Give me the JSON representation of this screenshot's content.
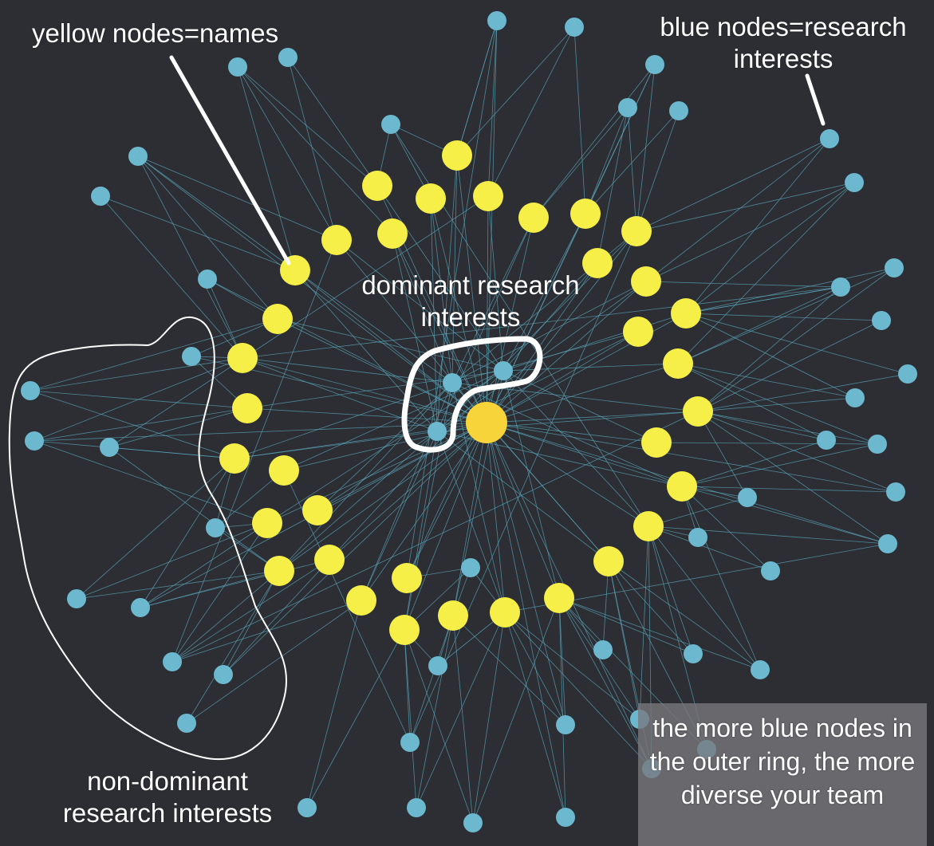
{
  "annotations": {
    "names_legend": "yellow nodes=names",
    "research_legend_line1": "blue nodes=research",
    "research_legend_line2": "interests",
    "dominant_line1": "dominant research",
    "dominant_line2": "interests",
    "nondominant_line1": "non-dominant",
    "nondominant_line2": "research interests",
    "diversity_note": "the more blue nodes in the outer ring, the more diverse your team"
  },
  "colors": {
    "background": "#2d2e33",
    "name_node": "#f6ef48",
    "hub_node": "#f7d43a",
    "interest_node": "#6cb8cf",
    "edge": "#5aa5bb",
    "annotation": "#ffffff"
  }
}
